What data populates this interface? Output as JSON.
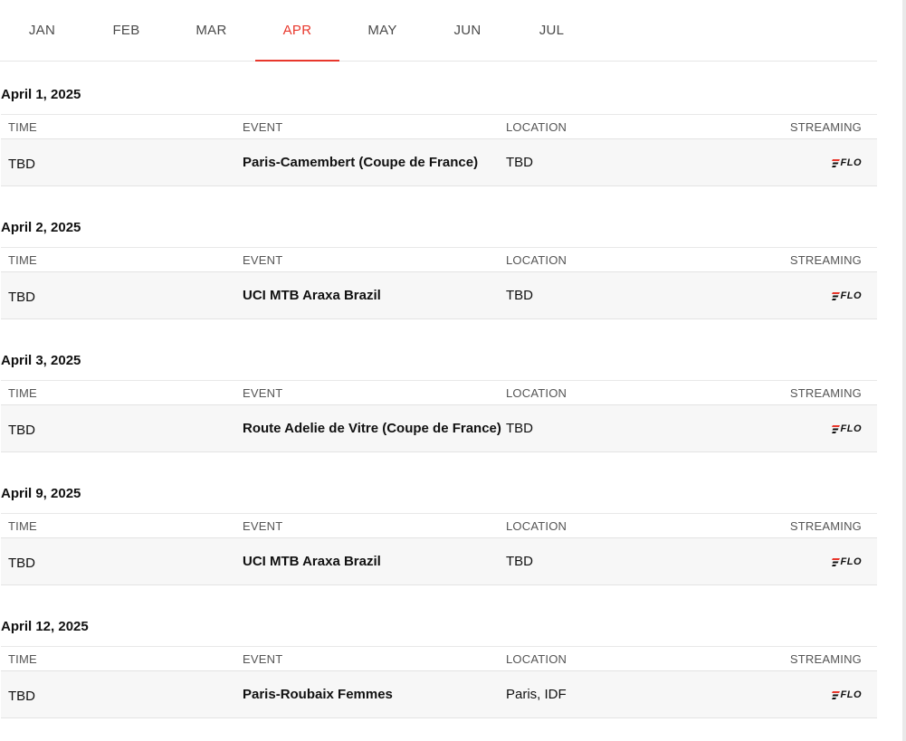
{
  "tabs": [
    {
      "label": "JAN",
      "active": false
    },
    {
      "label": "FEB",
      "active": false
    },
    {
      "label": "MAR",
      "active": false
    },
    {
      "label": "APR",
      "active": true
    },
    {
      "label": "MAY",
      "active": false
    },
    {
      "label": "JUN",
      "active": false
    },
    {
      "label": "JUL",
      "active": false
    }
  ],
  "columns": {
    "time": "TIME",
    "event": "EVENT",
    "location": "LOCATION",
    "streaming": "STREAMING"
  },
  "colors": {
    "accent": "#e8372c",
    "row_bg": "#f7f7f7"
  },
  "streaming_logo": {
    "icon": "flo-logo-icon",
    "text": "FLO"
  },
  "sections": [
    {
      "date": "April 1, 2025",
      "time": "TBD",
      "event": "Paris-Camembert (Coupe de France)",
      "location": "TBD"
    },
    {
      "date": "April 2, 2025",
      "time": "TBD",
      "event": "UCI MTB Araxa Brazil",
      "location": "TBD"
    },
    {
      "date": "April 3, 2025",
      "time": "TBD",
      "event": "Route Adelie de Vitre (Coupe de France)",
      "location": "TBD"
    },
    {
      "date": "April 9, 2025",
      "time": "TBD",
      "event": "UCI MTB Araxa Brazil",
      "location": "TBD"
    },
    {
      "date": "April 12, 2025",
      "time": "TBD",
      "event": "Paris-Roubaix Femmes",
      "location": "Paris, IDF"
    }
  ]
}
